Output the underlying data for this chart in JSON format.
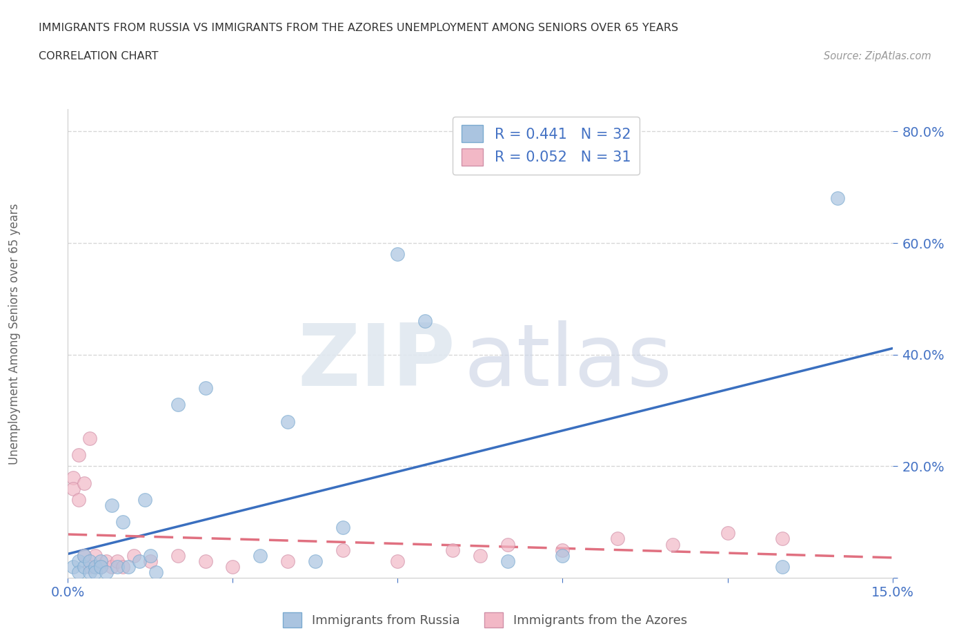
{
  "title_line1": "IMMIGRANTS FROM RUSSIA VS IMMIGRANTS FROM THE AZORES UNEMPLOYMENT AMONG SENIORS OVER 65 YEARS",
  "title_line2": "CORRELATION CHART",
  "source": "Source: ZipAtlas.com",
  "ylabel": "Unemployment Among Seniors over 65 years",
  "xlim": [
    0.0,
    0.15
  ],
  "ylim": [
    0.0,
    0.84
  ],
  "xticks": [
    0.0,
    0.03,
    0.06,
    0.09,
    0.12,
    0.15
  ],
  "xtick_labels": [
    "0.0%",
    "",
    "",
    "",
    "",
    "15.0%"
  ],
  "ytick_vals": [
    0.0,
    0.2,
    0.4,
    0.6,
    0.8
  ],
  "ytick_labels": [
    "",
    "20.0%",
    "40.0%",
    "60.0%",
    "80.0%"
  ],
  "russia_color": "#aac4e0",
  "azores_color": "#f2b8c6",
  "russia_line_color": "#3a6fbf",
  "azores_line_color": "#e07080",
  "russia_R": 0.441,
  "russia_N": 32,
  "azores_R": 0.052,
  "azores_N": 31,
  "russia_scatter_x": [
    0.001,
    0.002,
    0.002,
    0.003,
    0.003,
    0.004,
    0.004,
    0.005,
    0.005,
    0.006,
    0.006,
    0.007,
    0.008,
    0.009,
    0.01,
    0.011,
    0.013,
    0.014,
    0.015,
    0.016,
    0.02,
    0.025,
    0.035,
    0.04,
    0.045,
    0.05,
    0.06,
    0.065,
    0.08,
    0.09,
    0.13,
    0.14
  ],
  "russia_scatter_y": [
    0.02,
    0.03,
    0.01,
    0.02,
    0.04,
    0.03,
    0.01,
    0.02,
    0.01,
    0.03,
    0.02,
    0.01,
    0.13,
    0.02,
    0.1,
    0.02,
    0.03,
    0.14,
    0.04,
    0.01,
    0.31,
    0.34,
    0.04,
    0.28,
    0.03,
    0.09,
    0.58,
    0.46,
    0.03,
    0.04,
    0.02,
    0.68
  ],
  "azores_scatter_x": [
    0.001,
    0.001,
    0.002,
    0.002,
    0.003,
    0.003,
    0.004,
    0.004,
    0.005,
    0.005,
    0.006,
    0.007,
    0.008,
    0.009,
    0.01,
    0.012,
    0.015,
    0.02,
    0.025,
    0.03,
    0.04,
    0.05,
    0.06,
    0.07,
    0.075,
    0.08,
    0.09,
    0.1,
    0.11,
    0.12,
    0.13
  ],
  "azores_scatter_y": [
    0.18,
    0.16,
    0.22,
    0.14,
    0.17,
    0.04,
    0.25,
    0.02,
    0.02,
    0.04,
    0.02,
    0.03,
    0.02,
    0.03,
    0.02,
    0.04,
    0.03,
    0.04,
    0.03,
    0.02,
    0.03,
    0.05,
    0.03,
    0.05,
    0.04,
    0.06,
    0.05,
    0.07,
    0.06,
    0.08,
    0.07
  ],
  "background_color": "#ffffff",
  "grid_color": "#cccccc",
  "title_color": "#333333",
  "axis_label_color": "#666666",
  "tick_color": "#4472c4",
  "legend_color": "#4472c4"
}
